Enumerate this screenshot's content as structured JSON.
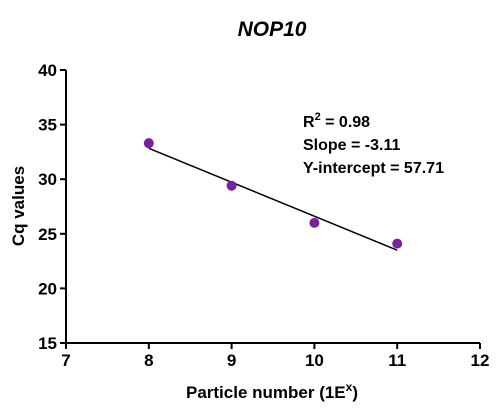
{
  "chart_data": {
    "type": "scatter",
    "title": "NOP10",
    "xlabel": {
      "base": "Particle number (1E",
      "sup": "x",
      "tail": ")"
    },
    "ylabel": "Cq values",
    "xlim": [
      7,
      12
    ],
    "ylim": [
      15,
      40
    ],
    "xticks": [
      7,
      8,
      9,
      10,
      11,
      12
    ],
    "yticks": [
      15,
      20,
      25,
      30,
      35,
      40
    ],
    "grid": false,
    "series": [
      {
        "x": [
          8,
          9,
          10,
          11
        ],
        "y": [
          33.3,
          29.4,
          26.0,
          24.1
        ],
        "color": "#7b1fa2"
      }
    ],
    "regression": {
      "slope": -3.11,
      "intercept": 57.71,
      "x_range": [
        8,
        11
      ],
      "color": "#000000"
    },
    "annotations": {
      "r2": {
        "base": "R",
        "sup": "2",
        "tail": " = 0.98"
      },
      "slope": "Slope = -3.11",
      "intercept": "Y-intercept = 57.71"
    }
  }
}
